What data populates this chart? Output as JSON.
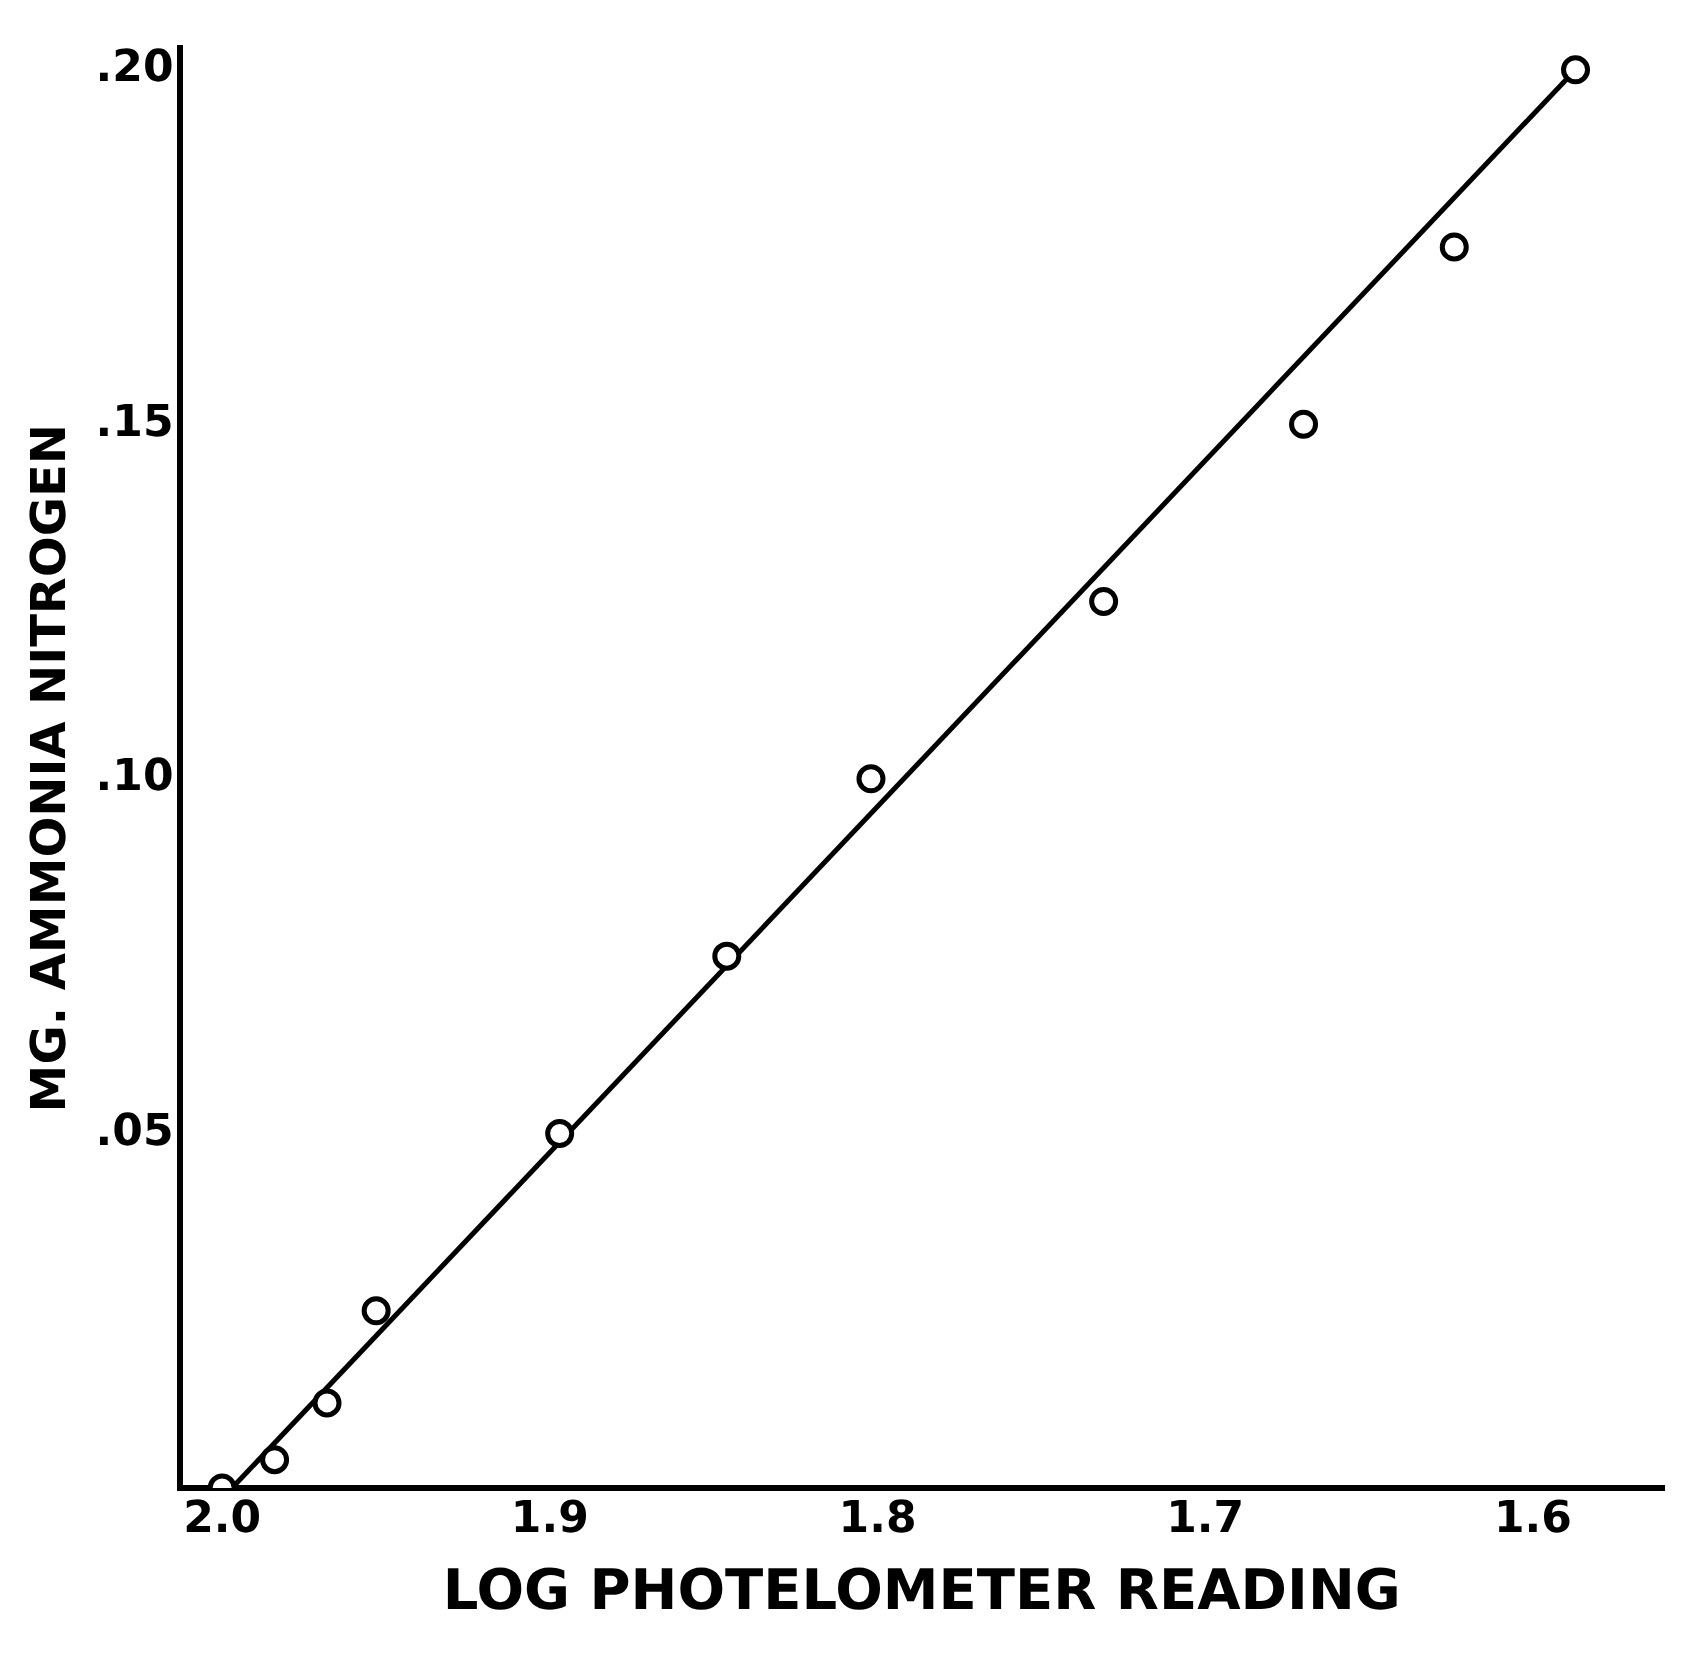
{
  "chart_data": {
    "type": "scatter",
    "xlabel": "LOG PHOTELOMETER READING",
    "ylabel": "MG. AMMONIA NITROGEN",
    "xlim": [
      2.013,
      1.56
    ],
    "ylim": [
      0,
      0.203
    ],
    "xticks": [
      {
        "value": 2,
        "label": "2.0"
      },
      1.9,
      1.8,
      1.7,
      1.6
    ],
    "yticks": [
      {
        "value": 0.05,
        "label": ".05"
      },
      {
        "value": 0.1,
        "label": ".10"
      },
      {
        "value": 0.15,
        "label": ".15"
      },
      {
        "value": 0.2,
        "label": ".20"
      }
    ],
    "grid": false,
    "legend": false,
    "series": [
      {
        "marker": "circle",
        "color": "#000000",
        "x": [
          2.0,
          1.984,
          1.968,
          1.953,
          1.897,
          1.846,
          1.802,
          1.731,
          1.67,
          1.624,
          1.587
        ],
        "values": [
          0,
          0.004,
          0.012,
          0.025,
          0.05,
          0.075,
          0.1,
          0.125,
          0.15,
          0.175,
          0.2
        ]
      },
      {
        "type": "line",
        "color": "#000000",
        "x": [
          1.997,
          1.587
        ],
        "values": [
          0,
          0.2
        ]
      }
    ]
  }
}
